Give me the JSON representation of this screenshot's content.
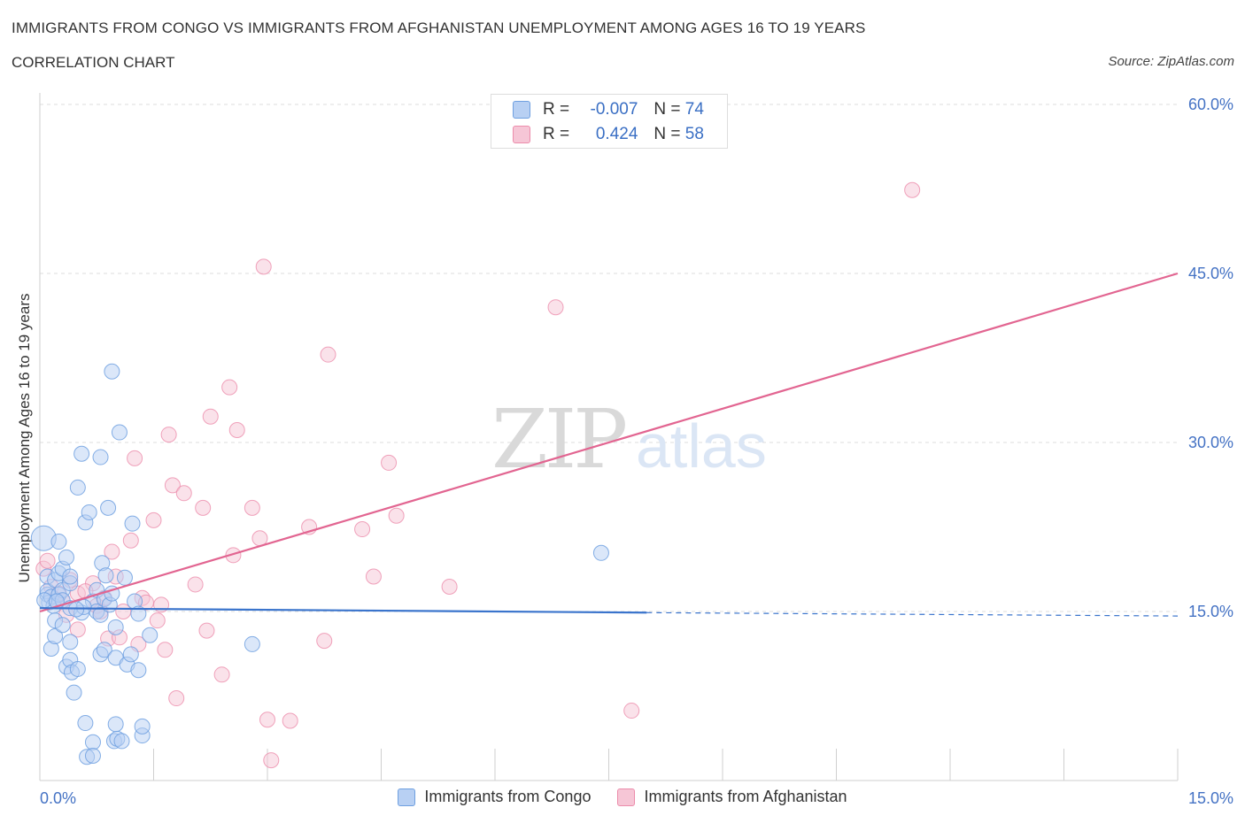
{
  "header": {
    "title": "IMMIGRANTS FROM CONGO VS IMMIGRANTS FROM AFGHANISTAN UNEMPLOYMENT AMONG AGES 16 TO 19 YEARS",
    "subtitle": "CORRELATION CHART",
    "source": "Source: ZipAtlas.com"
  },
  "watermark": {
    "zip": "ZIP",
    "atlas": "atlas"
  },
  "stats_legend": {
    "rows": [
      {
        "r_label": "R =",
        "r_value": "-0.007",
        "n_label": "N =",
        "n_value": "74"
      },
      {
        "r_label": "R =",
        "r_value": "0.424",
        "n_label": "N =",
        "n_value": "58"
      }
    ]
  },
  "colors": {
    "congo": "#6fa0e0",
    "congo_fill": "#b8d0f3",
    "afghanistan": "#ec8cab",
    "afghanistan_fill": "#f6c6d6",
    "congo_line": "#3a74cc",
    "afghanistan_line": "#e26591",
    "tick_text": "#4472c4"
  },
  "chart_data": {
    "type": "scatter",
    "title": "IMMIGRANTS FROM CONGO VS IMMIGRANTS FROM AFGHANISTAN UNEMPLOYMENT AMONG AGES 16 TO 19 YEARS",
    "xlabel": "",
    "ylabel": "Unemployment Among Ages 16 to 19 years",
    "xlim": [
      0,
      15
    ],
    "ylim": [
      0,
      60
    ],
    "x_tick_labels": [
      "0.0%",
      "15.0%"
    ],
    "y_ticks": [
      {
        "value": 15,
        "label": "15.0%"
      },
      {
        "value": 30,
        "label": "30.0%"
      },
      {
        "value": 45,
        "label": "45.0%"
      },
      {
        "value": 60,
        "label": "60.0%"
      }
    ],
    "grid": true,
    "legend_position": "bottom",
    "series": [
      {
        "name": "Immigrants from Congo",
        "R": -0.007,
        "N": 74,
        "trend": {
          "x0": 0,
          "y0": 15.3,
          "x1": 8,
          "y1": 14.9,
          "dashed_to_x": 15,
          "dashed_to_y": 14.6
        },
        "points": [
          [
            0.05,
            21.5
          ],
          [
            0.1,
            16.5
          ],
          [
            0.1,
            16.8
          ],
          [
            0.1,
            18.1
          ],
          [
            0.12,
            15.8
          ],
          [
            0.15,
            16.3
          ],
          [
            0.15,
            11.7
          ],
          [
            0.18,
            15.5
          ],
          [
            0.2,
            17.8
          ],
          [
            0.2,
            14.2
          ],
          [
            0.2,
            12.8
          ],
          [
            0.25,
            16.5
          ],
          [
            0.25,
            18.4
          ],
          [
            0.25,
            21.2
          ],
          [
            0.3,
            16.9
          ],
          [
            0.3,
            16.0
          ],
          [
            0.3,
            13.8
          ],
          [
            0.3,
            18.8
          ],
          [
            0.35,
            10.1
          ],
          [
            0.35,
            19.8
          ],
          [
            0.4,
            15.3
          ],
          [
            0.4,
            17.5
          ],
          [
            0.4,
            18.1
          ],
          [
            0.4,
            12.3
          ],
          [
            0.4,
            10.7
          ],
          [
            0.42,
            9.6
          ],
          [
            0.45,
            7.8
          ],
          [
            0.5,
            9.9
          ],
          [
            0.5,
            26.0
          ],
          [
            0.55,
            29.0
          ],
          [
            0.55,
            14.9
          ],
          [
            0.6,
            22.9
          ],
          [
            0.6,
            5.1
          ],
          [
            0.62,
            2.1
          ],
          [
            0.65,
            23.8
          ],
          [
            0.7,
            3.4
          ],
          [
            0.7,
            2.2
          ],
          [
            0.7,
            15.9
          ],
          [
            0.75,
            15.0
          ],
          [
            0.75,
            16.9
          ],
          [
            0.8,
            28.7
          ],
          [
            0.8,
            11.2
          ],
          [
            0.8,
            14.7
          ],
          [
            0.82,
            19.3
          ],
          [
            0.85,
            11.6
          ],
          [
            0.85,
            16.1
          ],
          [
            0.87,
            18.2
          ],
          [
            0.9,
            24.2
          ],
          [
            0.92,
            15.6
          ],
          [
            0.95,
            16.6
          ],
          [
            0.95,
            36.3
          ],
          [
            0.98,
            3.5
          ],
          [
            1.0,
            5.0
          ],
          [
            1.0,
            10.9
          ],
          [
            1.0,
            13.6
          ],
          [
            1.02,
            3.7
          ],
          [
            1.05,
            30.9
          ],
          [
            1.08,
            3.5
          ],
          [
            1.12,
            18.0
          ],
          [
            1.15,
            10.3
          ],
          [
            1.2,
            11.2
          ],
          [
            1.22,
            22.8
          ],
          [
            1.25,
            15.9
          ],
          [
            1.3,
            14.8
          ],
          [
            1.3,
            9.8
          ],
          [
            1.35,
            4.0
          ],
          [
            1.35,
            4.8
          ],
          [
            1.45,
            12.9
          ],
          [
            2.8,
            12.1
          ],
          [
            7.4,
            20.2
          ],
          [
            0.06,
            16.0
          ],
          [
            0.22,
            15.9
          ],
          [
            0.58,
            15.4
          ],
          [
            0.48,
            15.2
          ]
        ]
      },
      {
        "name": "Immigrants from Afghanistan",
        "R": 0.424,
        "N": 58,
        "trend": {
          "x0": 0,
          "y0": 15.0,
          "x1": 15,
          "y1": 45.0
        },
        "points": [
          [
            0.05,
            18.8
          ],
          [
            0.1,
            19.5
          ],
          [
            0.15,
            17.2
          ],
          [
            0.2,
            16.1
          ],
          [
            0.3,
            15.9
          ],
          [
            0.35,
            14.7
          ],
          [
            0.4,
            17.8
          ],
          [
            0.5,
            13.4
          ],
          [
            0.5,
            16.6
          ],
          [
            0.7,
            17.5
          ],
          [
            0.75,
            15.5
          ],
          [
            0.8,
            15.0
          ],
          [
            0.85,
            16.2
          ],
          [
            0.9,
            12.6
          ],
          [
            0.95,
            20.3
          ],
          [
            1.0,
            18.1
          ],
          [
            1.05,
            12.7
          ],
          [
            1.1,
            15.0
          ],
          [
            1.2,
            21.3
          ],
          [
            1.25,
            28.6
          ],
          [
            1.3,
            12.1
          ],
          [
            1.35,
            16.2
          ],
          [
            1.4,
            15.8
          ],
          [
            1.5,
            23.1
          ],
          [
            1.55,
            14.2
          ],
          [
            1.6,
            15.6
          ],
          [
            1.65,
            11.6
          ],
          [
            1.7,
            30.7
          ],
          [
            1.75,
            26.2
          ],
          [
            1.8,
            7.3
          ],
          [
            1.9,
            25.5
          ],
          [
            2.05,
            17.4
          ],
          [
            2.15,
            24.2
          ],
          [
            2.2,
            13.3
          ],
          [
            2.25,
            32.3
          ],
          [
            2.4,
            9.4
          ],
          [
            2.5,
            34.9
          ],
          [
            2.55,
            20.0
          ],
          [
            2.6,
            31.1
          ],
          [
            2.8,
            24.2
          ],
          [
            2.9,
            21.5
          ],
          [
            2.95,
            45.6
          ],
          [
            3.0,
            5.4
          ],
          [
            3.05,
            1.8
          ],
          [
            3.3,
            5.3
          ],
          [
            3.55,
            22.5
          ],
          [
            3.75,
            12.4
          ],
          [
            3.8,
            37.8
          ],
          [
            4.25,
            22.3
          ],
          [
            4.4,
            18.1
          ],
          [
            4.6,
            28.2
          ],
          [
            4.7,
            23.5
          ],
          [
            5.4,
            17.2
          ],
          [
            6.8,
            42.0
          ],
          [
            7.8,
            6.2
          ],
          [
            11.5,
            52.4
          ],
          [
            0.25,
            16.6
          ],
          [
            0.6,
            16.8
          ]
        ]
      }
    ]
  },
  "bottom_legend": {
    "items": [
      {
        "label": "Immigrants from Congo"
      },
      {
        "label": "Immigrants from Afghanistan"
      }
    ]
  }
}
